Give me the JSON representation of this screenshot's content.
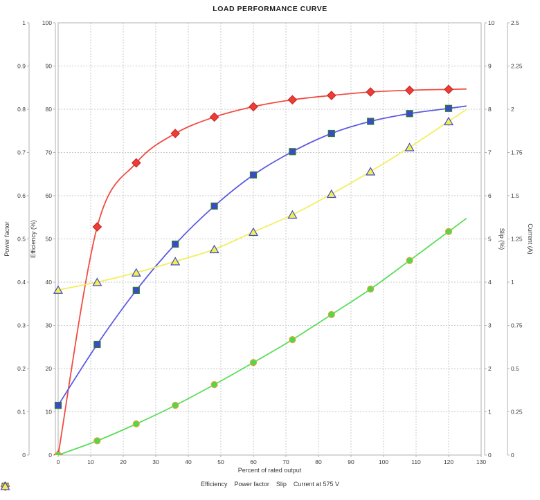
{
  "chart_data": {
    "type": "line",
    "title": "LOAD PERFORMANCE CURVE",
    "grid": true,
    "legend_position": "bottom",
    "x_axis": {
      "label": "Percent of rated output",
      "min": 0,
      "max": 130,
      "tick_step": 10
    },
    "axes": [
      {
        "id": "power_factor",
        "label": "Power factor",
        "side": "left",
        "position": 0,
        "min": 0,
        "max": 1,
        "tick_step": 0.1
      },
      {
        "id": "efficiency",
        "label": "Efficiency (%)",
        "side": "left",
        "position": 1,
        "min": 0,
        "max": 100,
        "tick_step": 10,
        "grid_source": true
      },
      {
        "id": "slip",
        "label": "Slip (%)",
        "side": "right",
        "position": 0,
        "min": 0,
        "max": 10,
        "tick_step": 1
      },
      {
        "id": "current",
        "label": "Current (A)",
        "side": "right",
        "position": 1,
        "min": 0,
        "max": 2.5,
        "tick_step": 0.25
      }
    ],
    "x": [
      0,
      12,
      24,
      36,
      48,
      60,
      72,
      84,
      96,
      108,
      120
    ],
    "series": [
      {
        "name": "Efficiency",
        "axis": "efficiency",
        "marker": "diamond",
        "line_color": "#f24b42",
        "marker_fill": "#ee3d34",
        "marker_stroke": "#c62828",
        "values": [
          0,
          52.8,
          67.6,
          74.4,
          78.2,
          80.6,
          82.2,
          83.2,
          84.0,
          84.4,
          84.6
        ]
      },
      {
        "name": "Power factor",
        "axis": "power_factor",
        "marker": "square",
        "line_color": "#5a5ae0",
        "marker_fill": "#3d49cb",
        "marker_stroke": "#2e7d32",
        "values": [
          0.115,
          0.256,
          0.381,
          0.488,
          0.576,
          0.648,
          0.702,
          0.744,
          0.772,
          0.79,
          0.802
        ]
      },
      {
        "name": "Slip",
        "axis": "slip",
        "marker": "circle",
        "line_color": "#5ade5a",
        "marker_fill": "#4cd94c",
        "marker_stroke": "#e8a33d",
        "values": [
          0,
          0.33,
          0.72,
          1.15,
          1.63,
          2.14,
          2.67,
          3.25,
          3.84,
          4.5,
          5.17
        ]
      },
      {
        "name": "Current at 575 V",
        "axis": "current",
        "marker": "triangle",
        "line_color": "#f3ee5b",
        "marker_fill": "#f4ef4e",
        "marker_stroke": "#3d49cb",
        "values": [
          0.955,
          1.0,
          1.055,
          1.12,
          1.19,
          1.29,
          1.39,
          1.51,
          1.64,
          1.78,
          1.93
        ]
      }
    ],
    "legend": [
      "Efficiency",
      "Power factor",
      "Slip",
      "Current at 575 V"
    ],
    "colors": {
      "grid": "#c9c9c9",
      "frame": "#b0b0b0",
      "tick_text": "#3a3a3a"
    }
  }
}
